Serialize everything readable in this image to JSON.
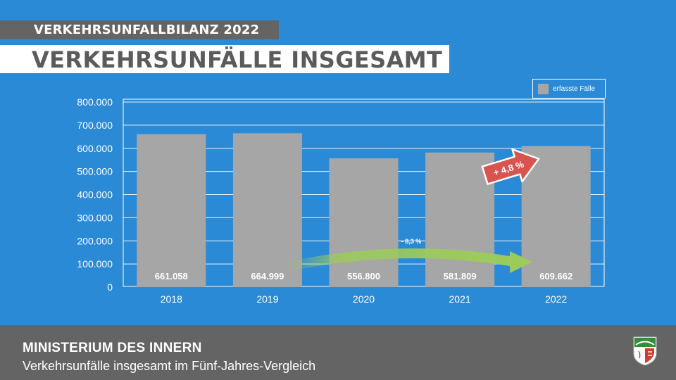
{
  "header": {
    "kicker": "VERKEHRSUNFALLBILANZ 2022",
    "title": "VERKEHRSUNFÄLLE INSGESAMT"
  },
  "chart_data": {
    "type": "bar",
    "categories": [
      "2018",
      "2019",
      "2020",
      "2021",
      "2022"
    ],
    "series": [
      {
        "name": "erfasste Fälle",
        "values": [
          661058,
          664999,
          556800,
          581809,
          609662
        ]
      }
    ],
    "value_labels": [
      "661.058",
      "664.999",
      "556.800",
      "581.809",
      "609.662"
    ],
    "y_ticks": [
      0,
      100000,
      200000,
      300000,
      400000,
      500000,
      600000,
      700000,
      800000
    ],
    "y_tick_labels": [
      "0",
      "100.000",
      "200.000",
      "300.000",
      "400.000",
      "500.000",
      "600.000",
      "700.000",
      "800.000"
    ],
    "ylim": [
      0,
      800000
    ],
    "grid": true,
    "legend_position": "top-right",
    "annotations": {
      "decrease": {
        "label": "- 8,3 %",
        "from": "2019",
        "to": "2022"
      },
      "increase": {
        "label": "+ 4,8 %",
        "at": "2022"
      }
    }
  },
  "colors": {
    "background": "#2b8ad6",
    "bar": "#a6a6a6",
    "decrease_arrow": "#9ccb5b",
    "increase_arrow": "#d9534f"
  },
  "footer": {
    "ministry": "MINISTERIUM DES INNERN",
    "subtitle": "Verkehrsunfälle insgesamt im Fünf-Jahres-Vergleich",
    "crest_icon": "nrw-crest-icon"
  }
}
